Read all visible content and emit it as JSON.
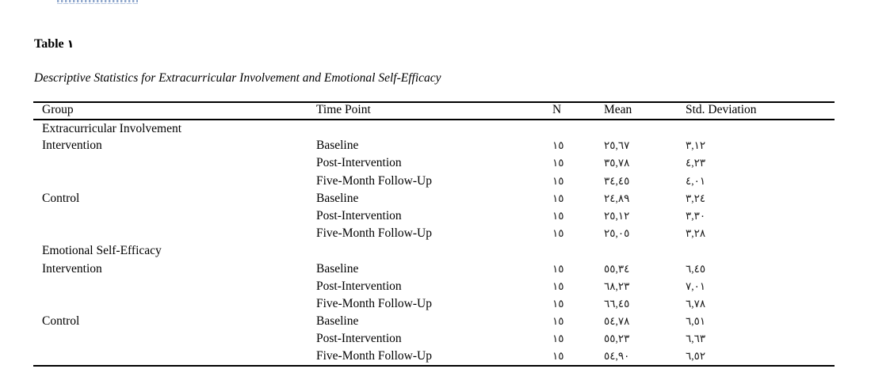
{
  "page": {
    "title_label": "Table",
    "table_number": "١",
    "caption": "Descriptive Statistics for Extracurricular Involvement and Emotional Self-Efficacy"
  },
  "table": {
    "columns": [
      "Group",
      "Time Point",
      "N",
      "Mean",
      "Std. Deviation"
    ],
    "rows": [
      {
        "group": "Extracurricular Involvement",
        "time_point": "",
        "n": "",
        "mean": "",
        "sd": "",
        "section": true
      },
      {
        "group": "Intervention",
        "time_point": "Baseline",
        "n": "١٥",
        "mean": "٢٥,٦٧",
        "sd": "٣,١٢"
      },
      {
        "group": "",
        "time_point": "Post-Intervention",
        "n": "١٥",
        "mean": "٣٥,٧٨",
        "sd": "٤,٢٣"
      },
      {
        "group": "",
        "time_point": "Five-Month Follow-Up",
        "n": "١٥",
        "mean": "٣٤,٤٥",
        "sd": "٤,٠١"
      },
      {
        "group": "Control",
        "time_point": "Baseline",
        "n": "١٥",
        "mean": "٢٤,٨٩",
        "sd": "٣,٢٤"
      },
      {
        "group": "",
        "time_point": "Post-Intervention",
        "n": "١٥",
        "mean": "٢٥,١٢",
        "sd": "٣,٣٠"
      },
      {
        "group": "",
        "time_point": "Five-Month Follow-Up",
        "n": "١٥",
        "mean": "٢٥,٠٥",
        "sd": "٣,٢٨"
      },
      {
        "group": "Emotional Self-Efficacy",
        "time_point": "",
        "n": "",
        "mean": "",
        "sd": "",
        "section": true
      },
      {
        "group": "Intervention",
        "time_point": "Baseline",
        "n": "١٥",
        "mean": "٥٥,٣٤",
        "sd": "٦,٤٥"
      },
      {
        "group": "",
        "time_point": "Post-Intervention",
        "n": "١٥",
        "mean": "٦٨,٢٣",
        "sd": "٧,٠١"
      },
      {
        "group": "",
        "time_point": "Five-Month Follow-Up",
        "n": "١٥",
        "mean": "٦٦,٤٥",
        "sd": "٦,٧٨"
      },
      {
        "group": "Control",
        "time_point": "Baseline",
        "n": "١٥",
        "mean": "٥٤,٧٨",
        "sd": "٦,٥١"
      },
      {
        "group": "",
        "time_point": "Post-Intervention",
        "n": "١٥",
        "mean": "٥٥,٢٣",
        "sd": "٦,٦٣"
      },
      {
        "group": "",
        "time_point": "Five-Month Follow-Up",
        "n": "١٥",
        "mean": "٥٤,٩٠",
        "sd": "٦,٥٢"
      }
    ]
  }
}
